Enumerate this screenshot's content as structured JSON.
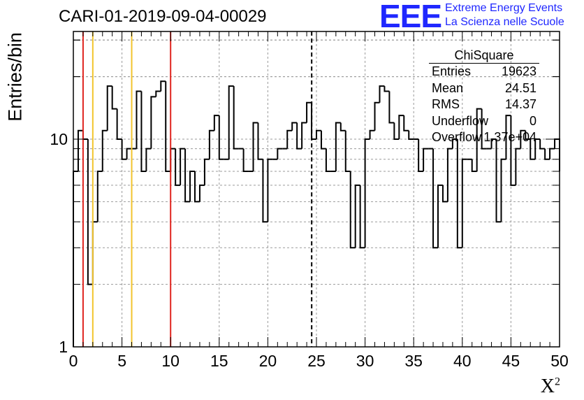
{
  "chart_data": {
    "type": "histogram",
    "title": "CARI-01-2019-09-04-00029",
    "xlabel": "X",
    "xlabel_superscript": "2",
    "ylabel": "Entries/bin",
    "xlim": [
      0,
      50
    ],
    "ylim": [
      1,
      33
    ],
    "yscale": "log",
    "grid": true,
    "x_ticks": [
      0,
      5,
      10,
      15,
      20,
      25,
      30,
      35,
      40,
      45,
      50
    ],
    "y_ticks": [
      1,
      10
    ],
    "bin_width": 0.5,
    "bin_values": [
      7,
      11,
      10,
      2,
      4,
      7,
      11,
      18,
      14,
      10,
      8,
      9,
      9,
      17,
      7,
      9,
      16,
      17,
      19,
      7,
      9,
      6,
      9,
      5,
      7,
      5,
      6,
      8,
      11,
      13,
      8,
      8,
      18,
      9,
      9,
      7,
      7,
      12,
      8,
      4,
      8,
      8,
      9,
      9,
      11,
      12,
      9,
      12,
      15,
      10,
      11,
      9,
      7,
      7,
      12,
      11,
      7,
      3,
      6,
      3,
      10,
      11,
      15,
      18,
      17,
      12,
      10,
      13,
      11,
      10,
      10,
      7,
      9,
      9,
      3,
      6,
      5,
      9,
      10,
      3,
      8,
      8,
      7,
      14,
      9,
      9,
      10,
      4,
      8,
      13,
      6,
      9,
      11,
      10,
      8,
      10,
      9,
      8,
      9,
      10
    ],
    "vertical_lines": [
      {
        "x": 1,
        "color": "#e0251f",
        "style": "solid"
      },
      {
        "x": 2,
        "color": "#f2c42c",
        "style": "solid"
      },
      {
        "x": 6,
        "color": "#f2c42c",
        "style": "solid"
      },
      {
        "x": 10,
        "color": "#e0251f",
        "style": "solid"
      },
      {
        "x": 24.51,
        "color": "#000000",
        "style": "dashed"
      }
    ],
    "stats": {
      "name": "ChiSquare",
      "rows": [
        {
          "label": "Entries",
          "value": "19623"
        },
        {
          "label": "Mean",
          "value": "24.51"
        },
        {
          "label": "RMS",
          "value": "14.37"
        },
        {
          "label": "Underflow",
          "value": "0"
        },
        {
          "label": "Overflow",
          "value": "1.37e+04"
        }
      ]
    }
  },
  "logo": {
    "text": "EEE",
    "line1": "Extreme Energy Events",
    "line2": "La Scienza nelle Scuole",
    "color": "#1f27ff"
  }
}
